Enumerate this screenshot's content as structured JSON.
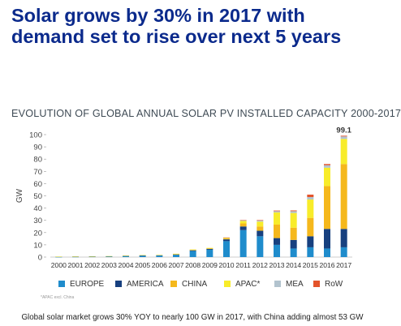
{
  "headline": "Solar grows by 30% in 2017 with demand set to rise over next 5 years",
  "footnote": "*APAC excl. China",
  "caption": "Global solar market grows 30% YOY to nearly 100 GW in 2017, with China adding almost 53 GW",
  "chart_data": {
    "type": "bar",
    "stacked": true,
    "title": "EVOLUTION OF GLOBAL ANNUAL SOLAR PV INSTALLED CAPACITY 2000-2017",
    "ylabel": "GW",
    "ylim": [
      0,
      100
    ],
    "yticks": [
      0,
      10,
      20,
      30,
      40,
      50,
      60,
      70,
      80,
      90,
      100
    ],
    "grid": false,
    "legend_position": "bottom",
    "categories": [
      "2000",
      "2001",
      "2002",
      "2003",
      "2004",
      "2005",
      "2006",
      "2007",
      "2008",
      "2009",
      "2010",
      "2011",
      "2012",
      "2013",
      "2014",
      "2015",
      "2016",
      "2017"
    ],
    "series": [
      {
        "name": "EUROPE",
        "color": "#1f8ccc",
        "values": [
          0.1,
          0.2,
          0.3,
          0.4,
          0.7,
          1.0,
          1.2,
          1.9,
          5.0,
          6.0,
          13.0,
          22.0,
          17.0,
          10.0,
          7.0,
          8.0,
          7.0,
          8.0
        ]
      },
      {
        "name": "AMERICA",
        "color": "#17407f",
        "values": [
          0.2,
          0.2,
          0.2,
          0.2,
          0.3,
          0.3,
          0.3,
          0.4,
          0.6,
          0.8,
          1.5,
          3.0,
          4.5,
          5.5,
          7.0,
          9.0,
          16.0,
          15.0
        ]
      },
      {
        "name": "CHINA",
        "color": "#f5b81c",
        "values": [
          0,
          0,
          0,
          0,
          0,
          0,
          0,
          0.1,
          0.2,
          0.2,
          0.5,
          2.5,
          3.5,
          11.0,
          10.0,
          15.0,
          35.0,
          53.0
        ]
      },
      {
        "name": "APAC*",
        "color": "#f8ec2a",
        "values": [
          0.1,
          0.1,
          0.1,
          0.2,
          0.2,
          0.3,
          0.3,
          0.3,
          0.4,
          0.5,
          0.8,
          2.0,
          4.0,
          10.0,
          12.0,
          15.0,
          15.0,
          20.5
        ]
      },
      {
        "name": "MEA",
        "color": "#b2c3ce",
        "values": [
          0,
          0,
          0,
          0,
          0,
          0,
          0,
          0,
          0,
          0,
          0.1,
          0.5,
          0.8,
          1.0,
          1.5,
          2.0,
          2.0,
          2.0
        ]
      },
      {
        "name": "RoW",
        "color": "#e4542b",
        "values": [
          0,
          0,
          0,
          0,
          0,
          0,
          0,
          0,
          0,
          0,
          0.1,
          0.3,
          0.4,
          0.5,
          0.6,
          2.0,
          1.0,
          0.6
        ]
      }
    ],
    "annotations": [
      {
        "category": "2017",
        "text": "99.1"
      }
    ]
  }
}
